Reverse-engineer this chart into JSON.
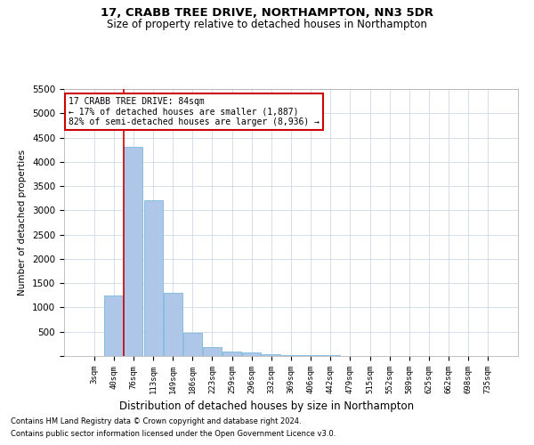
{
  "title_line1": "17, CRABB TREE DRIVE, NORTHAMPTON, NN3 5DR",
  "title_line2": "Size of property relative to detached houses in Northampton",
  "xlabel": "Distribution of detached houses by size in Northampton",
  "ylabel": "Number of detached properties",
  "footnote1": "Contains HM Land Registry data © Crown copyright and database right 2024.",
  "footnote2": "Contains public sector information licensed under the Open Government Licence v3.0.",
  "annotation_line1": "17 CRABB TREE DRIVE: 84sqm",
  "annotation_line2": "← 17% of detached houses are smaller (1,887)",
  "annotation_line3": "82% of semi-detached houses are larger (8,936) →",
  "bar_labels": [
    "3sqm",
    "40sqm",
    "76sqm",
    "113sqm",
    "149sqm",
    "186sqm",
    "223sqm",
    "259sqm",
    "296sqm",
    "332sqm",
    "369sqm",
    "406sqm",
    "442sqm",
    "479sqm",
    "515sqm",
    "552sqm",
    "589sqm",
    "625sqm",
    "662sqm",
    "698sqm",
    "735sqm"
  ],
  "bar_values": [
    0,
    1250,
    4300,
    3200,
    1300,
    480,
    190,
    100,
    70,
    45,
    25,
    15,
    10,
    8,
    5,
    3,
    2,
    1,
    1,
    0,
    0
  ],
  "bar_color": "#aec6e8",
  "bar_edge_color": "#6baed6",
  "red_line_x": 1.5,
  "ylim": [
    0,
    5500
  ],
  "yticks": [
    0,
    500,
    1000,
    1500,
    2000,
    2500,
    3000,
    3500,
    4000,
    4500,
    5000,
    5500
  ],
  "background_color": "#ffffff",
  "grid_color": "#d0d8e8",
  "annotation_box_color": "#ffffff",
  "annotation_box_edge": "#cc0000",
  "red_line_color": "#cc0000",
  "title1_fontsize": 9.5,
  "title2_fontsize": 8.5
}
